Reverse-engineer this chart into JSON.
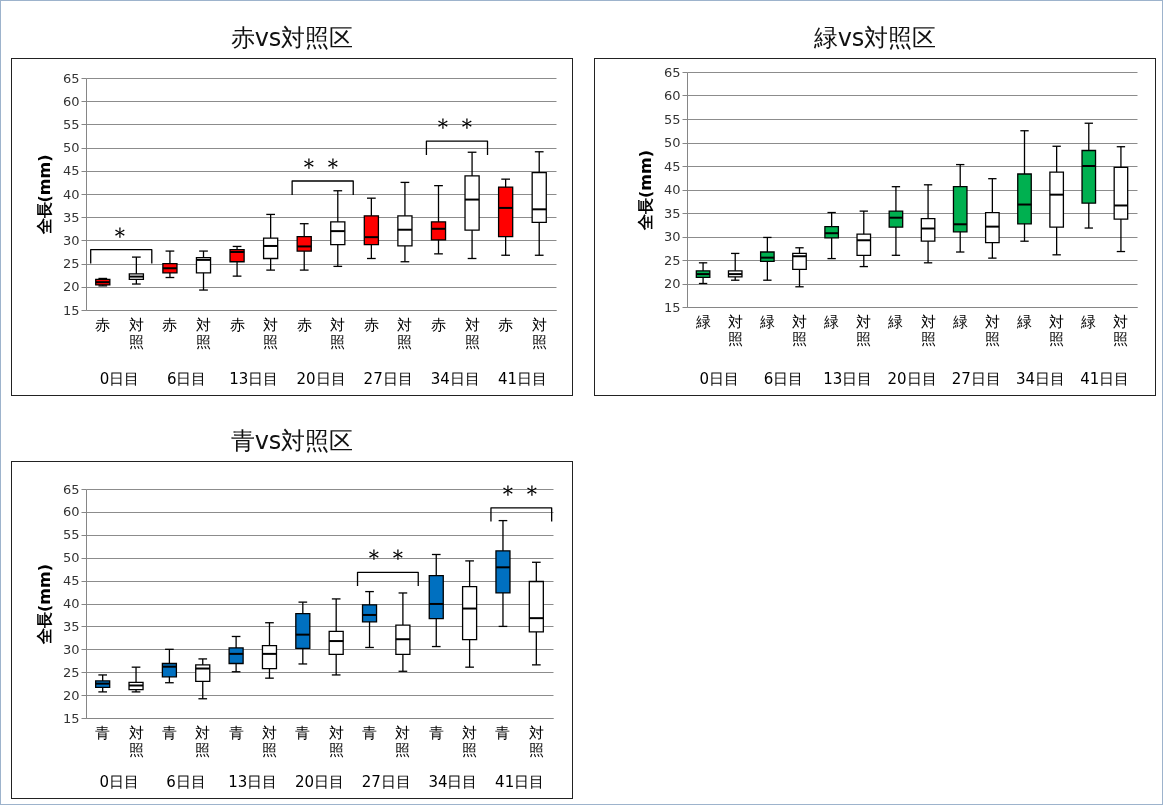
{
  "chart_data": [
    {
      "type": "box",
      "title": "赤vs対照区",
      "ylabel": "全長(mm)",
      "categories": [
        "0日目",
        "6日目",
        "13日目",
        "20日目",
        "27日目",
        "34日目",
        "41日目"
      ],
      "series": [
        {
          "name": "赤",
          "color": "#ff0000",
          "boxes": [
            {
              "low": 20.2,
              "q1": 20.4,
              "median": 21.0,
              "q3": 21.6,
              "high": 21.8
            },
            {
              "low": 22.0,
              "q1": 23.0,
              "median": 24.0,
              "q3": 25.0,
              "high": 27.7
            },
            {
              "low": 22.3,
              "q1": 25.4,
              "median": 27.5,
              "q3": 28.0,
              "high": 28.7
            },
            {
              "low": 23.6,
              "q1": 27.7,
              "median": 28.7,
              "q3": 30.8,
              "high": 33.6
            },
            {
              "low": 26.1,
              "q1": 29.1,
              "median": 30.7,
              "q3": 35.3,
              "high": 39.1
            },
            {
              "low": 27.1,
              "q1": 30.1,
              "median": 32.5,
              "q3": 34.0,
              "high": 41.8
            },
            {
              "low": 26.8,
              "q1": 30.8,
              "median": 37.0,
              "q3": 41.5,
              "high": 43.2
            }
          ]
        },
        {
          "name": "対照",
          "color": "#ffffff",
          "boxes": [
            {
              "low": 20.6,
              "q1": 21.6,
              "median": 22.2,
              "q3": 22.8,
              "high": 26.4
            },
            {
              "low": 19.3,
              "q1": 23.0,
              "median": 25.8,
              "q3": 26.3,
              "high": 27.7
            },
            {
              "low": 23.6,
              "q1": 26.1,
              "median": 28.8,
              "q3": 30.5,
              "high": 35.6
            },
            {
              "low": 24.4,
              "q1": 29.1,
              "median": 32.0,
              "q3": 34.0,
              "high": 40.7
            },
            {
              "low": 25.4,
              "q1": 28.8,
              "median": 32.3,
              "q3": 35.3,
              "high": 42.5
            },
            {
              "low": 26.1,
              "q1": 32.2,
              "median": 38.8,
              "q3": 43.9,
              "high": 49.0
            },
            {
              "low": 26.8,
              "q1": 33.9,
              "median": 36.7,
              "q3": 44.6,
              "high": 49.1
            }
          ]
        }
      ],
      "ylim": [
        15,
        65
      ],
      "yticks": [
        15,
        20,
        25,
        30,
        35,
        40,
        45,
        50,
        55,
        60,
        65
      ],
      "grid": "y",
      "annotations": [
        "＊",
        "＊＊",
        "＊＊"
      ]
    },
    {
      "type": "box",
      "title": "緑vs対照区",
      "ylabel": "全長(mm)",
      "categories": [
        "0日目",
        "6日目",
        "13日目",
        "20日目",
        "27日目",
        "34日目",
        "41日目"
      ],
      "series": [
        {
          "name": "緑",
          "color": "#00b050",
          "boxes": [
            {
              "low": 20.0,
              "q1": 21.3,
              "median": 22.0,
              "q3": 22.7,
              "high": 24.4
            },
            {
              "low": 20.7,
              "q1": 24.7,
              "median": 25.5,
              "q3": 26.7,
              "high": 29.8
            },
            {
              "low": 25.3,
              "q1": 29.7,
              "median": 30.7,
              "q3": 32.1,
              "high": 35.1
            },
            {
              "low": 26.0,
              "q1": 32.0,
              "median": 34.0,
              "q3": 35.4,
              "high": 40.6
            },
            {
              "low": 26.7,
              "q1": 31.0,
              "median": 32.6,
              "q3": 40.6,
              "high": 45.3
            },
            {
              "low": 29.0,
              "q1": 32.7,
              "median": 36.8,
              "q3": 43.3,
              "high": 52.5
            },
            {
              "low": 31.8,
              "q1": 37.1,
              "median": 45.0,
              "q3": 48.3,
              "high": 54.1
            }
          ]
        },
        {
          "name": "対照",
          "color": "#ffffff",
          "boxes": [
            {
              "low": 20.7,
              "q1": 21.4,
              "median": 22.0,
              "q3": 22.7,
              "high": 26.4
            },
            {
              "low": 19.3,
              "q1": 23.0,
              "median": 25.8,
              "q3": 26.4,
              "high": 27.6
            },
            {
              "low": 23.6,
              "q1": 26.0,
              "median": 29.2,
              "q3": 30.5,
              "high": 35.4
            },
            {
              "low": 24.4,
              "q1": 29.0,
              "median": 31.7,
              "q3": 33.8,
              "high": 41.0
            },
            {
              "low": 25.4,
              "q1": 28.7,
              "median": 32.1,
              "q3": 35.1,
              "high": 42.3
            },
            {
              "low": 26.1,
              "q1": 32.0,
              "median": 38.9,
              "q3": 43.7,
              "high": 49.2
            },
            {
              "low": 26.8,
              "q1": 33.7,
              "median": 36.6,
              "q3": 44.7,
              "high": 49.1
            }
          ]
        }
      ],
      "ylim": [
        15,
        65
      ],
      "yticks": [
        15,
        20,
        25,
        30,
        35,
        40,
        45,
        50,
        55,
        60,
        65
      ],
      "grid": "y"
    },
    {
      "type": "box",
      "title": "青vs対照区",
      "ylabel": "全長(mm)",
      "categories": [
        "0日目",
        "6日目",
        "13日目",
        "20日目",
        "27日目",
        "34日目",
        "41日目"
      ],
      "series": [
        {
          "name": "青",
          "color": "#0070c0",
          "boxes": [
            {
              "low": 20.7,
              "q1": 21.7,
              "median": 22.5,
              "q3": 23.1,
              "high": 24.4
            },
            {
              "low": 22.7,
              "q1": 24.0,
              "median": 26.2,
              "q3": 26.9,
              "high": 30.0
            },
            {
              "low": 25.1,
              "q1": 26.9,
              "median": 29.0,
              "q3": 30.3,
              "high": 32.8
            },
            {
              "low": 26.8,
              "q1": 30.2,
              "median": 33.2,
              "q3": 37.8,
              "high": 40.3
            },
            {
              "low": 30.4,
              "q1": 36.0,
              "median": 37.5,
              "q3": 39.7,
              "high": 42.6
            },
            {
              "low": 30.6,
              "q1": 36.7,
              "median": 39.9,
              "q3": 46.1,
              "high": 50.7
            },
            {
              "low": 35.0,
              "q1": 42.3,
              "median": 47.9,
              "q3": 51.5,
              "high": 58.1
            }
          ]
        },
        {
          "name": "対照",
          "color": "#ffffff",
          "boxes": [
            {
              "low": 20.7,
              "q1": 21.2,
              "median": 22.1,
              "q3": 22.8,
              "high": 26.1
            },
            {
              "low": 19.2,
              "q1": 23.0,
              "median": 25.8,
              "q3": 26.6,
              "high": 27.9
            },
            {
              "low": 23.7,
              "q1": 25.8,
              "median": 29.0,
              "q3": 30.8,
              "high": 35.8
            },
            {
              "low": 24.4,
              "q1": 28.9,
              "median": 31.8,
              "q3": 33.9,
              "high": 41.0
            },
            {
              "low": 25.2,
              "q1": 28.9,
              "median": 32.2,
              "q3": 35.3,
              "high": 42.3
            },
            {
              "low": 26.1,
              "q1": 32.1,
              "median": 38.9,
              "q3": 43.7,
              "high": 49.3
            },
            {
              "low": 26.6,
              "q1": 33.8,
              "median": 36.8,
              "q3": 44.8,
              "high": 49.0
            }
          ]
        }
      ],
      "ylim": [
        15,
        65
      ],
      "yticks": [
        15,
        20,
        25,
        30,
        35,
        40,
        45,
        50,
        55,
        60,
        65
      ],
      "grid": "y",
      "annotations": [
        "＊＊",
        "＊＊"
      ]
    }
  ]
}
